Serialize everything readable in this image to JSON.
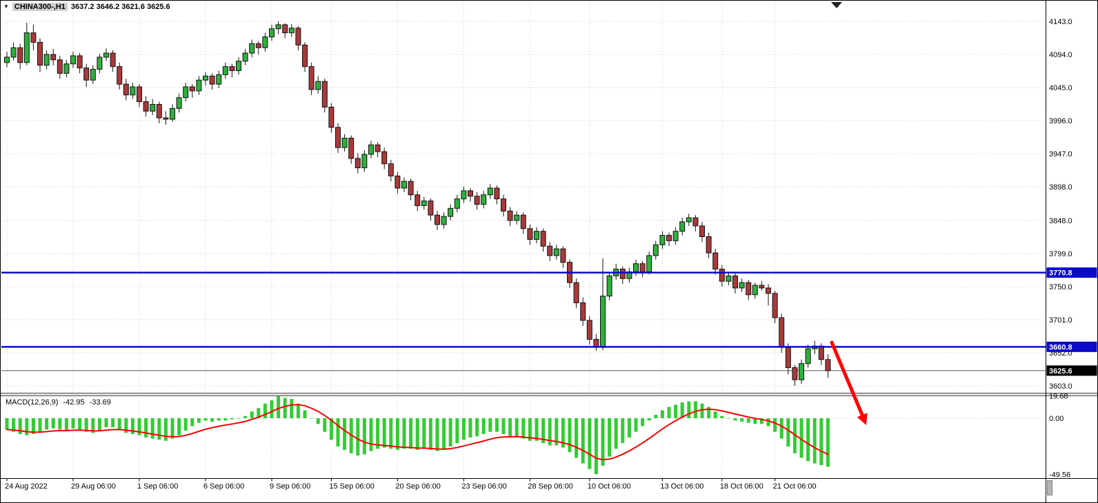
{
  "window": {
    "bg": "#ffffff",
    "border_color": "#000000"
  },
  "header": {
    "symbol": "CHINA300-,H1",
    "ohlc": "3637.2 3646.2 3621.6 3625.6"
  },
  "macd_panel": {
    "name": "MACD(12,26,9)",
    "main_value": "-42.95",
    "signal_value": "-33.69"
  },
  "colors": {
    "grid": "#c6c6c6",
    "up": "#2FAF3C",
    "down": "#A83A3A",
    "outline": "#111111",
    "macd_hist": "#33CC33",
    "macd_signal": "#FF0000",
    "level_blue": "#0A0AC8",
    "arrow": "#FF0000",
    "axis_text": "#000000",
    "current_price_line": "#555555",
    "current_price_tag": "#000000"
  },
  "chart_data": {
    "type": "candlestick",
    "symbol": "CHINA300-",
    "timeframe": "H1",
    "title": "CHINA300-,H1",
    "ohlc_display": {
      "open": 3637.2,
      "high": 3646.2,
      "low": 3621.6,
      "close": 3625.6
    },
    "y_axis": {
      "min": 3603.0,
      "max": 4143.0,
      "tick_labels": [
        "4143.0",
        "4094.0",
        "4045.0",
        "3996.0",
        "3947.0",
        "3898.0",
        "3848.0",
        "3799.0",
        "3750.0",
        "3701.0",
        "3652.0",
        "3603.0"
      ]
    },
    "x_axis": {
      "labels": [
        {
          "text": "24 Aug 2022",
          "bar": 0
        },
        {
          "text": "29 Aug 06:00",
          "bar": 10
        },
        {
          "text": "1 Sep 06:00",
          "bar": 20
        },
        {
          "text": "6 Sep 06:00",
          "bar": 30
        },
        {
          "text": "9 Sep 06:00",
          "bar": 40
        },
        {
          "text": "15 Sep 06:00",
          "bar": 49
        },
        {
          "text": "20 Sep 06:00",
          "bar": 59
        },
        {
          "text": "23 Sep 06:00",
          "bar": 69
        },
        {
          "text": "28 Sep 06:00",
          "bar": 79
        },
        {
          "text": "10 Oct 06:00",
          "bar": 88
        },
        {
          "text": "13 Oct 06:00",
          "bar": 99
        },
        {
          "text": "18 Oct 06:00",
          "bar": 108
        },
        {
          "text": "21 Oct 06:00",
          "bar": 116
        }
      ]
    },
    "hlines": [
      {
        "price": 3770.8,
        "label": "3770.8"
      },
      {
        "price": 3660.8,
        "label": "3660.8"
      }
    ],
    "current_price": {
      "price": 3625.6,
      "label": "3625.6"
    },
    "arrow_annotation": {
      "direction": "down-right",
      "color": "#FF0000"
    },
    "candles": [
      [
        4082,
        4098,
        4075,
        4090
      ],
      [
        4090,
        4112,
        4085,
        4104
      ],
      [
        4104,
        4110,
        4072,
        4082
      ],
      [
        4082,
        4141,
        4078,
        4126
      ],
      [
        4126,
        4138,
        4100,
        4112
      ],
      [
        4112,
        4118,
        4068,
        4078
      ],
      [
        4078,
        4100,
        4072,
        4094
      ],
      [
        4094,
        4102,
        4078,
        4086
      ],
      [
        4086,
        4092,
        4058,
        4066
      ],
      [
        4066,
        4086,
        4060,
        4080
      ],
      [
        4080,
        4098,
        4074,
        4092
      ],
      [
        4092,
        4096,
        4066,
        4074
      ],
      [
        4074,
        4080,
        4046,
        4056
      ],
      [
        4056,
        4078,
        4050,
        4072
      ],
      [
        4072,
        4095,
        4066,
        4090
      ],
      [
        4090,
        4103,
        4084,
        4096
      ],
      [
        4096,
        4100,
        4068,
        4076
      ],
      [
        4076,
        4082,
        4042,
        4050
      ],
      [
        4050,
        4058,
        4026,
        4034
      ],
      [
        4034,
        4052,
        4028,
        4046
      ],
      [
        4046,
        4050,
        4016,
        4024
      ],
      [
        4024,
        4032,
        4002,
        4010
      ],
      [
        4010,
        4028,
        4004,
        4020
      ],
      [
        4020,
        4024,
        3992,
        4000
      ],
      [
        4000,
        4010,
        3990,
        3998
      ],
      [
        3998,
        4020,
        3994,
        4014
      ],
      [
        4014,
        4036,
        4008,
        4030
      ],
      [
        4030,
        4052,
        4024,
        4046
      ],
      [
        4046,
        4050,
        4030,
        4040
      ],
      [
        4040,
        4062,
        4034,
        4056
      ],
      [
        4056,
        4068,
        4048,
        4062
      ],
      [
        4062,
        4066,
        4042,
        4050
      ],
      [
        4050,
        4070,
        4044,
        4064
      ],
      [
        4064,
        4082,
        4058,
        4076
      ],
      [
        4076,
        4080,
        4060,
        4070
      ],
      [
        4070,
        4090,
        4064,
        4084
      ],
      [
        4084,
        4102,
        4078,
        4096
      ],
      [
        4096,
        4116,
        4090,
        4110
      ],
      [
        4110,
        4114,
        4094,
        4104
      ],
      [
        4104,
        4126,
        4098,
        4120
      ],
      [
        4120,
        4138,
        4114,
        4132
      ],
      [
        4132,
        4143,
        4124,
        4138
      ],
      [
        4138,
        4140,
        4118,
        4126
      ],
      [
        4126,
        4139,
        4120,
        4133
      ],
      [
        4133,
        4136,
        4100,
        4108
      ],
      [
        4108,
        4112,
        4068,
        4076
      ],
      [
        4076,
        4082,
        4034,
        4042
      ],
      [
        4042,
        4062,
        4036,
        4054
      ],
      [
        4054,
        4058,
        4008,
        4016
      ],
      [
        4016,
        4022,
        3978,
        3986
      ],
      [
        3986,
        3992,
        3948,
        3956
      ],
      [
        3956,
        3976,
        3950,
        3970
      ],
      [
        3970,
        3974,
        3932,
        3940
      ],
      [
        3940,
        3948,
        3918,
        3926
      ],
      [
        3926,
        3952,
        3920,
        3946
      ],
      [
        3946,
        3966,
        3940,
        3960
      ],
      [
        3960,
        3964,
        3942,
        3950
      ],
      [
        3950,
        3956,
        3924,
        3932
      ],
      [
        3932,
        3938,
        3906,
        3914
      ],
      [
        3914,
        3920,
        3888,
        3896
      ],
      [
        3896,
        3912,
        3890,
        3906
      ],
      [
        3906,
        3910,
        3878,
        3886
      ],
      [
        3886,
        3892,
        3862,
        3870
      ],
      [
        3870,
        3883,
        3864,
        3877
      ],
      [
        3877,
        3881,
        3848,
        3856
      ],
      [
        3856,
        3862,
        3834,
        3842
      ],
      [
        3842,
        3860,
        3836,
        3854
      ],
      [
        3854,
        3872,
        3848,
        3866
      ],
      [
        3866,
        3886,
        3860,
        3880
      ],
      [
        3880,
        3898,
        3874,
        3892
      ],
      [
        3892,
        3896,
        3876,
        3884
      ],
      [
        3884,
        3890,
        3864,
        3872
      ],
      [
        3872,
        3892,
        3866,
        3886
      ],
      [
        3886,
        3902,
        3880,
        3896
      ],
      [
        3896,
        3900,
        3872,
        3880
      ],
      [
        3880,
        3886,
        3854,
        3862
      ],
      [
        3862,
        3868,
        3840,
        3848
      ],
      [
        3848,
        3862,
        3842,
        3856
      ],
      [
        3856,
        3860,
        3828,
        3836
      ],
      [
        3836,
        3842,
        3812,
        3820
      ],
      [
        3820,
        3838,
        3814,
        3832
      ],
      [
        3832,
        3836,
        3802,
        3810
      ],
      [
        3810,
        3816,
        3788,
        3796
      ],
      [
        3796,
        3812,
        3790,
        3806
      ],
      [
        3806,
        3810,
        3778,
        3786
      ],
      [
        3786,
        3790,
        3748,
        3756
      ],
      [
        3756,
        3762,
        3718,
        3726
      ],
      [
        3726,
        3734,
        3692,
        3700
      ],
      [
        3700,
        3706,
        3664,
        3672
      ],
      [
        3672,
        3680,
        3655,
        3660
      ],
      [
        3660,
        3792,
        3656,
        3736
      ],
      [
        3736,
        3772,
        3730,
        3766
      ],
      [
        3766,
        3784,
        3760,
        3776
      ],
      [
        3776,
        3780,
        3754,
        3762
      ],
      [
        3762,
        3778,
        3756,
        3772
      ],
      [
        3772,
        3790,
        3766,
        3784
      ],
      [
        3784,
        3788,
        3764,
        3772
      ],
      [
        3772,
        3802,
        3768,
        3796
      ],
      [
        3796,
        3818,
        3790,
        3812
      ],
      [
        3812,
        3832,
        3806,
        3826
      ],
      [
        3826,
        3830,
        3810,
        3818
      ],
      [
        3818,
        3838,
        3812,
        3832
      ],
      [
        3832,
        3852,
        3826,
        3846
      ],
      [
        3846,
        3858,
        3840,
        3852
      ],
      [
        3852,
        3856,
        3832,
        3840
      ],
      [
        3840,
        3846,
        3816,
        3824
      ],
      [
        3824,
        3830,
        3792,
        3800
      ],
      [
        3800,
        3806,
        3768,
        3776
      ],
      [
        3776,
        3782,
        3750,
        3758
      ],
      [
        3758,
        3772,
        3752,
        3766
      ],
      [
        3766,
        3770,
        3740,
        3748
      ],
      [
        3748,
        3762,
        3742,
        3756
      ],
      [
        3756,
        3760,
        3730,
        3738
      ],
      [
        3738,
        3756,
        3732,
        3752
      ],
      [
        3752,
        3758,
        3744,
        3748
      ],
      [
        3748,
        3754,
        3722,
        3740
      ],
      [
        3740,
        3744,
        3696,
        3704
      ],
      [
        3704,
        3710,
        3652,
        3660
      ],
      [
        3660,
        3666,
        3620,
        3630
      ],
      [
        3630,
        3634,
        3603,
        3612
      ],
      [
        3612,
        3642,
        3606,
        3636
      ],
      [
        3636,
        3664,
        3630,
        3658
      ],
      [
        3658,
        3670,
        3650,
        3662
      ],
      [
        3662,
        3666,
        3634,
        3642
      ],
      [
        3642,
        3650,
        3615,
        3625.6
      ]
    ],
    "macd": {
      "label": "MACD(12,26,9)",
      "axis_labels": [
        "19.68",
        "0.00",
        "-49.56"
      ],
      "y_min": -49.56,
      "y_max": 19.68,
      "current_main": -42.95,
      "current_signal": -33.69,
      "signal_method": "EMA9_of_main",
      "main": [
        -10,
        -12,
        -14,
        -15,
        -14,
        -12,
        -10,
        -9,
        -10,
        -11,
        -9,
        -10,
        -12,
        -13,
        -11,
        -8,
        -8,
        -10,
        -13,
        -14,
        -15,
        -17,
        -18,
        -19,
        -20,
        -18,
        -15,
        -11,
        -7,
        -4,
        -2,
        -3,
        -2,
        -2,
        -1,
        0,
        2,
        6,
        9,
        13,
        16,
        19.6,
        18,
        17,
        13,
        7,
        0,
        -5,
        -12,
        -19,
        -25,
        -28,
        -31,
        -33,
        -32,
        -29,
        -27,
        -26,
        -27,
        -28,
        -27,
        -27,
        -28,
        -27,
        -28,
        -29,
        -28,
        -25,
        -22,
        -19,
        -17,
        -16,
        -14,
        -12,
        -12,
        -14,
        -16,
        -16,
        -18,
        -20,
        -20,
        -22,
        -24,
        -24,
        -26,
        -30,
        -35,
        -40,
        -45,
        -49.5,
        -42,
        -34,
        -27,
        -22,
        -17,
        -12,
        -7,
        -2,
        3,
        7,
        10,
        12,
        14,
        15,
        15,
        13,
        10,
        6,
        2,
        0,
        -2,
        -3,
        -4,
        -5,
        -5,
        -7,
        -12,
        -18,
        -25,
        -31,
        -35,
        -38,
        -40,
        -41.5,
        -42.95
      ]
    }
  }
}
